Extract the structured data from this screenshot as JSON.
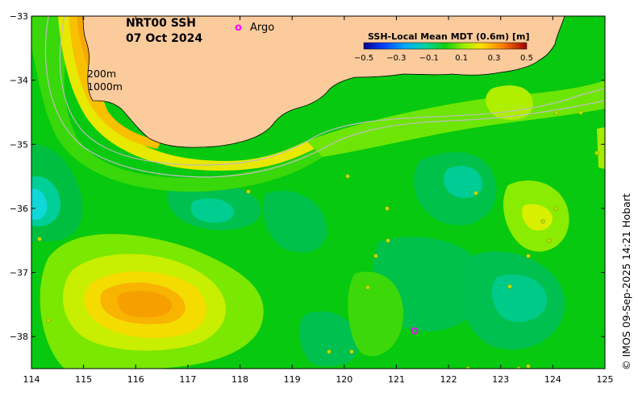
{
  "title": {
    "line1": "NRT00 SSH",
    "line2": "07 Oct 2024"
  },
  "legend": {
    "marker_label": "Argo",
    "marker_glyph": "o",
    "marker_color": "#ff00ff"
  },
  "isobaths": {
    "label_200": "200m",
    "label_1000": "1000m"
  },
  "colorbar": {
    "title": "SSH-Local Mean MDT (0.6m) [m]",
    "ticks": [
      "−0.5",
      "−0.3",
      "−0.1",
      "0.1",
      "0.3",
      "0.5"
    ],
    "range": [
      -0.5,
      0.5
    ]
  },
  "credit": "© IMOS 09-Sep-2025 14:21 Hobart",
  "axes": {
    "x_ticks": [
      "114",
      "115",
      "116",
      "117",
      "118",
      "119",
      "120",
      "121",
      "122",
      "123",
      "124",
      "125"
    ],
    "y_ticks": [
      "−33",
      "−34",
      "−35",
      "−36",
      "−37",
      "−38"
    ],
    "x_range": [
      114,
      125
    ],
    "y_range": [
      -38.5,
      -33
    ]
  },
  "colors": {
    "land": "#fccb9c",
    "ocean_base": "#07c90f",
    "argo": "#ff00ff"
  },
  "argo_floats": [
    {
      "lon": 121.4,
      "lat": -37.92
    }
  ]
}
